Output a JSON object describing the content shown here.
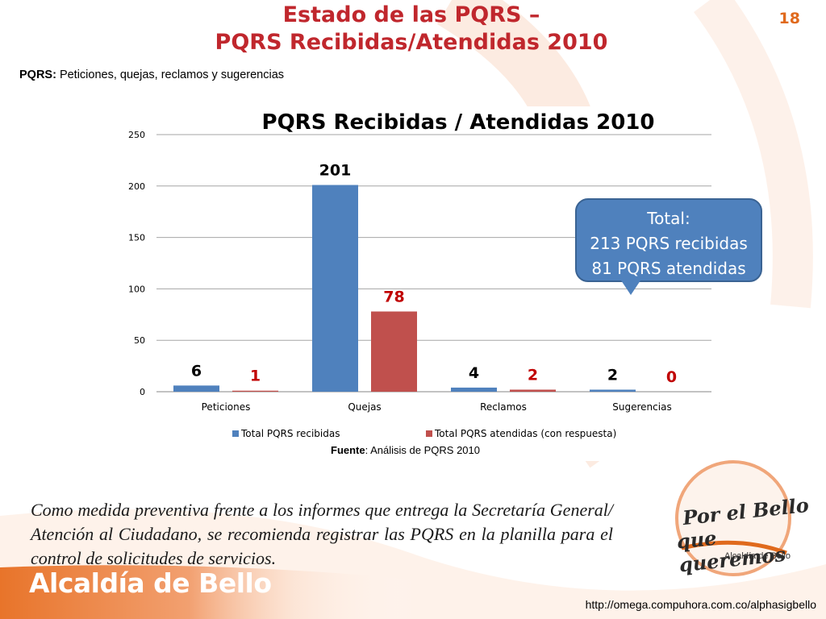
{
  "slide": {
    "title_line1": "Estado de las PQRS –",
    "title_line2": "PQRS Recibidas/Atendidas 2010",
    "slide_number": "18",
    "definition_label": "PQRS:",
    "definition_text": " Peticiones, quejas, reclamos y sugerencias",
    "source_label": "Fuente",
    "source_text": ": Análisis de PQRS 2010",
    "body_text": "Como medida preventiva frente a los informes que entrega la Secretaría General/ Atención al Ciudadano, se recomienda registrar las PQRS en la planilla para el control de solicitudes de servicios.",
    "footer_brand": "Alcaldía de Bello",
    "footer_url": "http://omega.compuhora.com.co/alphasigbello"
  },
  "logo": {
    "line1": "Por el Bello",
    "line2": "que queremos",
    "sub": "Alcaldía de Bello"
  },
  "callout": {
    "label": "Total",
    "colon": ":",
    "line1": "213 PQRS recibidas",
    "line2": "81 PQRS atendidas"
  },
  "colors": {
    "title": "#c0272d",
    "accent_orange": "#e06a1d",
    "series_received": "#4f81bd",
    "series_attended": "#c0504d",
    "label_attended": "#c00000"
  },
  "chart_data": {
    "type": "bar",
    "title": "PQRS Recibidas  / Atendidas 2010",
    "categories": [
      "Peticiones",
      "Quejas",
      "Reclamos",
      "Sugerencias"
    ],
    "series": [
      {
        "name": "Total PQRS recibidas",
        "values": [
          6,
          201,
          4,
          2
        ],
        "color": "#4f81bd"
      },
      {
        "name": "Total PQRS atendidas (con respuesta)",
        "values": [
          1,
          78,
          2,
          0
        ],
        "color": "#c0504d"
      }
    ],
    "ylim": [
      0,
      250
    ],
    "yticks": [
      0,
      50,
      100,
      150,
      200,
      250
    ],
    "grid": true,
    "legend": "bottom",
    "data_labels": true
  }
}
